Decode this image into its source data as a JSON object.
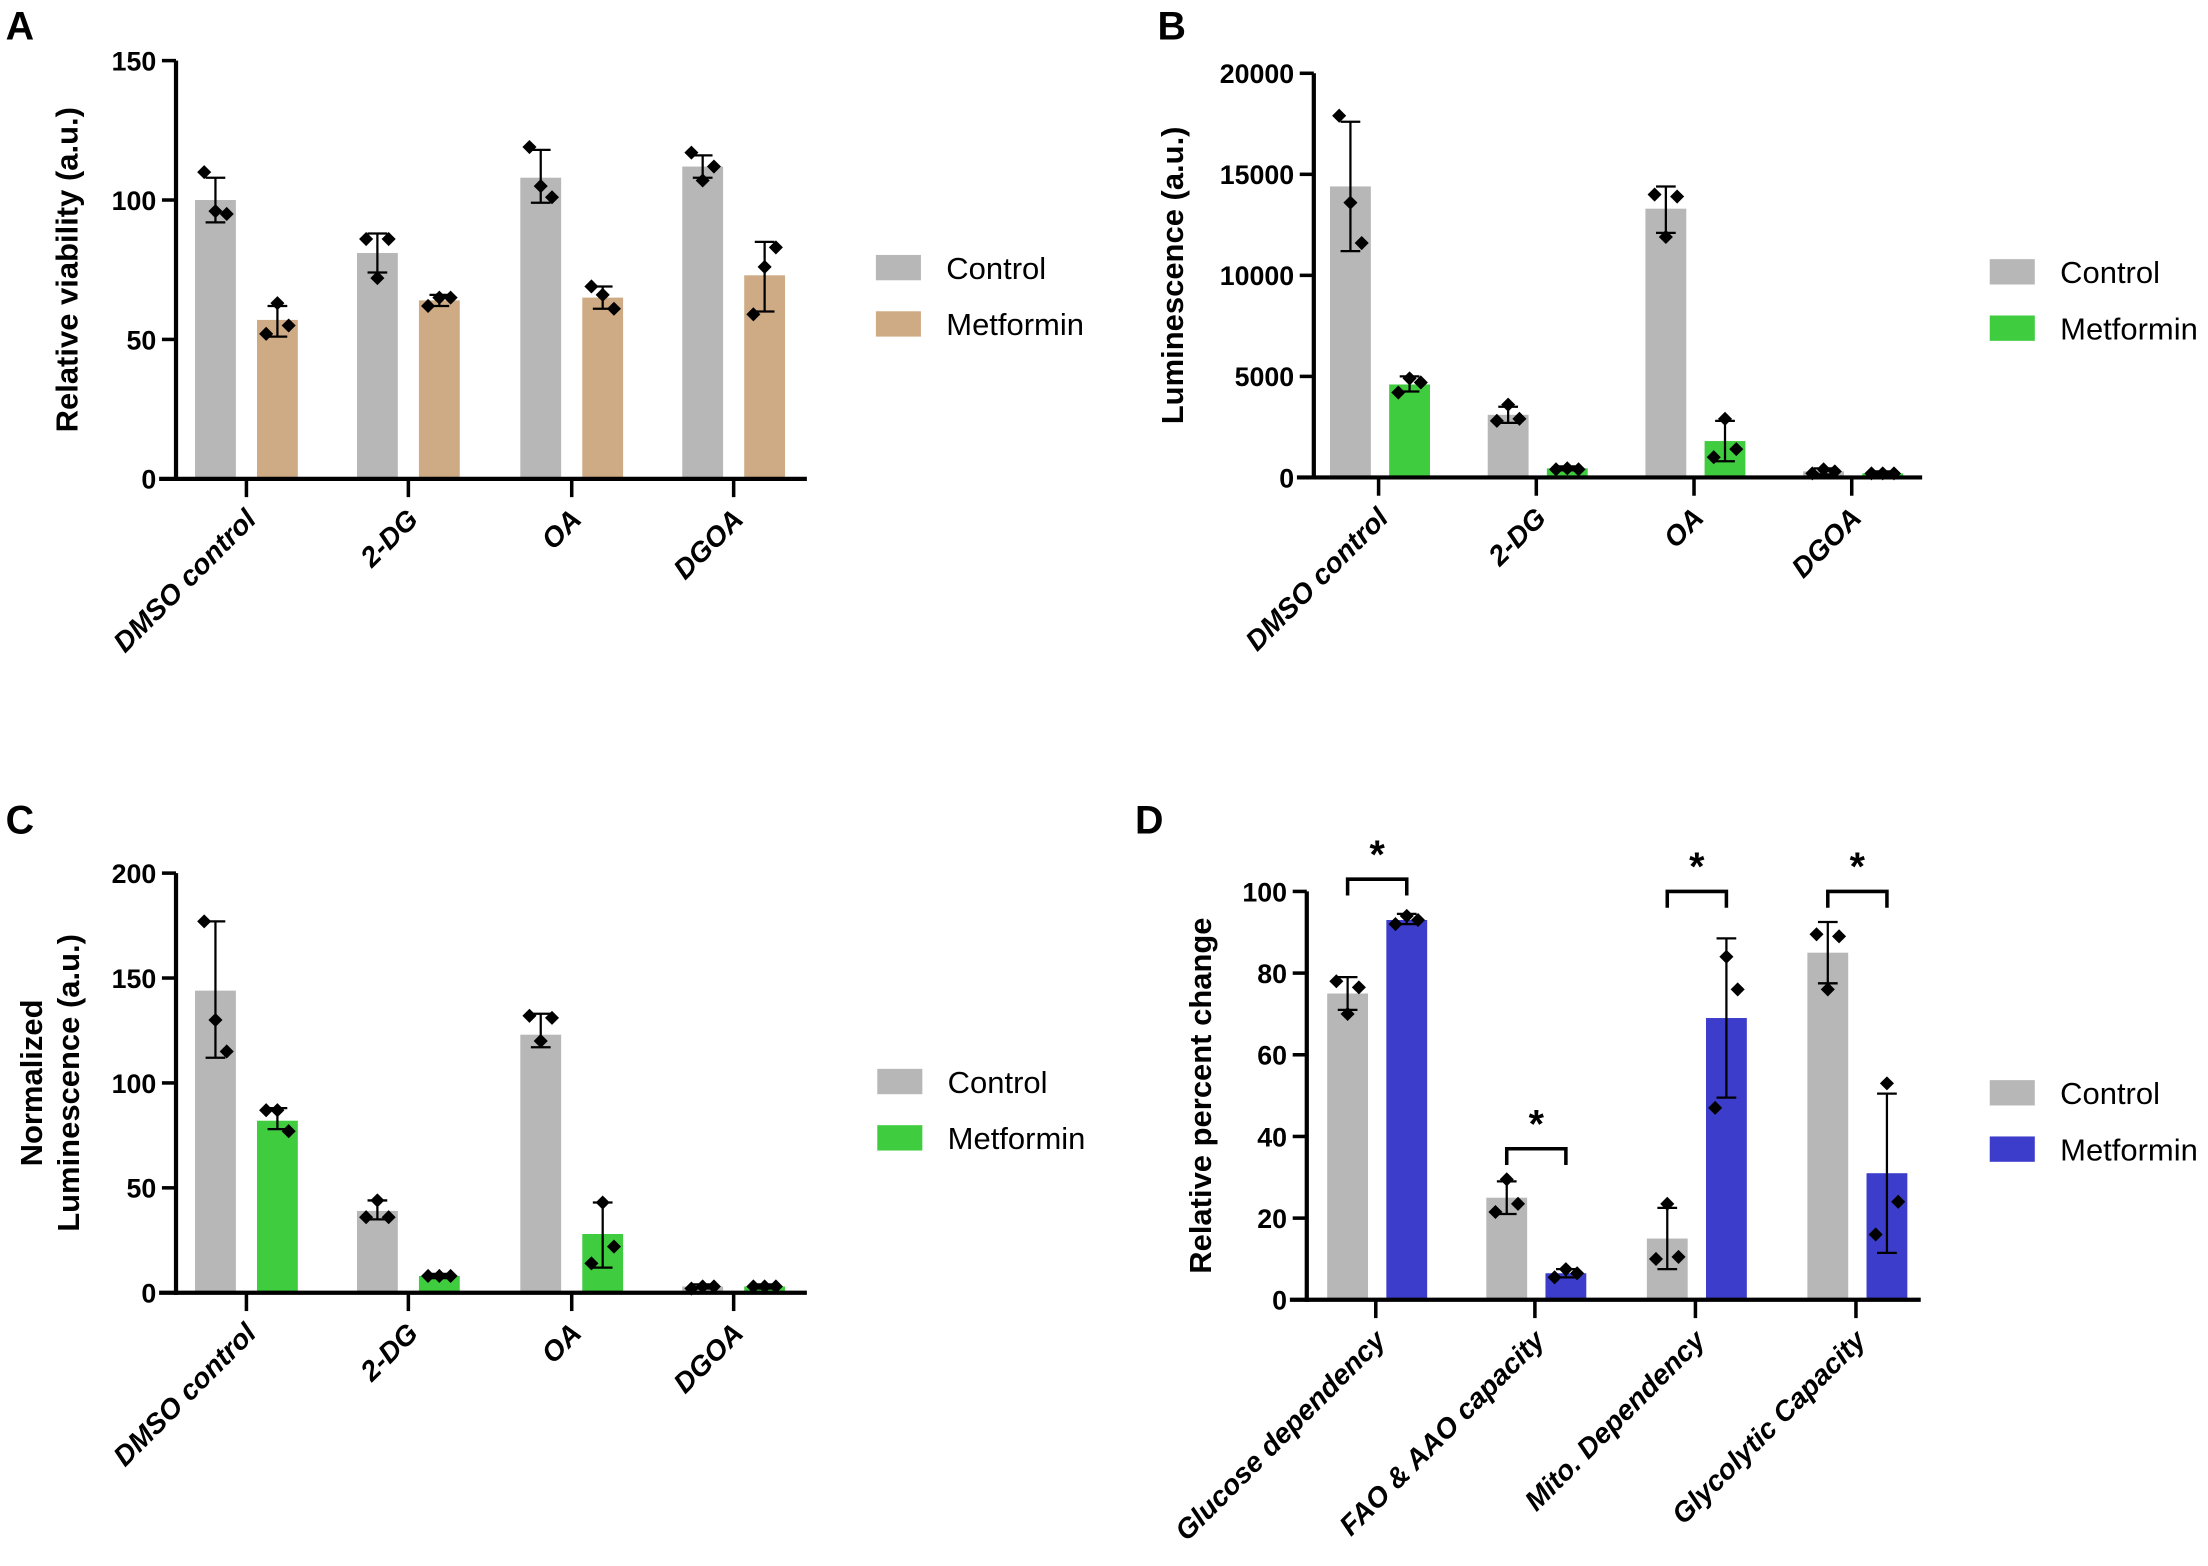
{
  "colors": {
    "control": "#b7b7b7",
    "metformin_A": "#cfab85",
    "metformin_green": "#3fcc3f",
    "metformin_blue": "#3d3dcc",
    "axis": "#000000"
  },
  "chart_data": [
    {
      "panel": "A",
      "type": "bar",
      "title": "",
      "xlabel": "",
      "ylabel": "Relative viability (a.u.)",
      "ylim": [
        0,
        150
      ],
      "yticks": [
        0,
        50,
        100,
        150
      ],
      "categories": [
        "DMSO control",
        "2-DG",
        "OA",
        "DGOA"
      ],
      "legend": "right",
      "series": [
        {
          "name": "Control",
          "color": "#b7b7b7",
          "values": [
            100,
            81,
            108,
            112
          ],
          "err": [
            [
              92,
              108
            ],
            [
              74,
              88
            ],
            [
              99,
              118
            ],
            [
              108,
              116
            ]
          ],
          "points": [
            [
              110,
              95,
              96
            ],
            [
              86,
              86,
              72
            ],
            [
              119,
              101,
              105
            ],
            [
              117,
              112,
              107
            ]
          ]
        },
        {
          "name": "Metformin",
          "color": "#cfab85",
          "values": [
            57,
            64,
            65,
            73
          ],
          "err": [
            [
              51,
              62
            ],
            [
              62,
              66
            ],
            [
              61,
              69
            ],
            [
              60,
              85
            ]
          ],
          "points": [
            [
              52,
              55,
              63
            ],
            [
              62,
              65,
              65
            ],
            [
              69,
              61,
              66
            ],
            [
              59,
              83,
              76
            ]
          ]
        }
      ]
    },
    {
      "panel": "B",
      "type": "bar",
      "title": "",
      "xlabel": "",
      "ylabel": "Luminescence (a.u.)",
      "ylim": [
        0,
        20000
      ],
      "yticks": [
        0,
        5000,
        10000,
        15000,
        20000
      ],
      "categories": [
        "DMSO control",
        "2-DG",
        "OA",
        "DGOA"
      ],
      "legend": "right",
      "series": [
        {
          "name": "Control",
          "color": "#b7b7b7",
          "values": [
            14400,
            3100,
            13300,
            300
          ],
          "err": [
            [
              11200,
              17600
            ],
            [
              2700,
              3500
            ],
            [
              12100,
              14400
            ],
            [
              150,
              450
            ]
          ],
          "points": [
            [
              17900,
              11600,
              13600
            ],
            [
              2800,
              2900,
              3600
            ],
            [
              14000,
              13900,
              11900
            ],
            [
              200,
              300,
              400
            ]
          ]
        },
        {
          "name": "Metformin",
          "color": "#3fcc3f",
          "values": [
            4600,
            450,
            1800,
            200
          ],
          "err": [
            [
              4250,
              5000
            ],
            [
              350,
              550
            ],
            [
              800,
              2800
            ],
            [
              100,
              300
            ]
          ],
          "points": [
            [
              4200,
              4700,
              4900
            ],
            [
              400,
              400,
              450
            ],
            [
              1000,
              1400,
              2900
            ],
            [
              200,
              200,
              200
            ]
          ]
        }
      ]
    },
    {
      "panel": "C",
      "type": "bar",
      "title": "",
      "xlabel": "",
      "ylabel": [
        "Normalized",
        "Luminescence (a.u.)"
      ],
      "ylim": [
        0,
        200
      ],
      "yticks": [
        0,
        50,
        100,
        150,
        200
      ],
      "categories": [
        "DMSO control",
        "2-DG",
        "OA",
        "DGOA"
      ],
      "legend": "right",
      "series": [
        {
          "name": "Control",
          "color": "#b7b7b7",
          "values": [
            144,
            39,
            123,
            3
          ],
          "err": [
            [
              112,
              177
            ],
            [
              35,
              44
            ],
            [
              117,
              133
            ],
            [
              2,
              4
            ]
          ],
          "points": [
            [
              177,
              115,
              130
            ],
            [
              36,
              36,
              44
            ],
            [
              132,
              131,
              120
            ],
            [
              2,
              3,
              3
            ]
          ]
        },
        {
          "name": "Metformin",
          "color": "#3fcc3f",
          "values": [
            82,
            8,
            28,
            3
          ],
          "err": [
            [
              78,
              88
            ],
            [
              7,
              9
            ],
            [
              12,
              43
            ],
            [
              2,
              4
            ]
          ],
          "points": [
            [
              87,
              77,
              87
            ],
            [
              8,
              8,
              8
            ],
            [
              14,
              22,
              43
            ],
            [
              3,
              3,
              3
            ]
          ]
        }
      ]
    },
    {
      "panel": "D",
      "type": "bar",
      "title": "",
      "xlabel": "",
      "ylabel": "Relative percent change",
      "ylim": [
        0,
        100
      ],
      "yticks": [
        0,
        20,
        40,
        60,
        80,
        100
      ],
      "categories": [
        "Glucose dependency",
        "FAO & AAO capacity",
        "Mito. Dependency",
        "Glycolytic Capacity"
      ],
      "legend": "right",
      "series": [
        {
          "name": "Control",
          "color": "#b7b7b7",
          "values": [
            75,
            25,
            15,
            85
          ],
          "err": [
            [
              71,
              79
            ],
            [
              21,
              29
            ],
            [
              7.5,
              22.5
            ],
            [
              77.5,
              92.5
            ]
          ],
          "points": [
            [
              78,
              76.5,
              70
            ],
            [
              21.5,
              23.5,
              29.5
            ],
            [
              10,
              10.5,
              23.5
            ],
            [
              89.5,
              89,
              76
            ]
          ]
        },
        {
          "name": "Metformin",
          "color": "#3d3dcc",
          "values": [
            93,
            6.5,
            69,
            31
          ],
          "err": [
            [
              92,
              94.5
            ],
            [
              5.5,
              7.5
            ],
            [
              49.5,
              88.5
            ],
            [
              11.5,
              50.5
            ]
          ],
          "points": [
            [
              92,
              93,
              94
            ],
            [
              5.5,
              6.5,
              7.5
            ],
            [
              47,
              76,
              84
            ],
            [
              16,
              24,
              53
            ]
          ]
        }
      ],
      "significance": [
        {
          "category": 0,
          "label": "*",
          "y": 103
        },
        {
          "category": 1,
          "label": "*",
          "y": 37
        },
        {
          "category": 2,
          "label": "*",
          "y": 100
        },
        {
          "category": 3,
          "label": "*",
          "y": 100
        }
      ]
    }
  ]
}
